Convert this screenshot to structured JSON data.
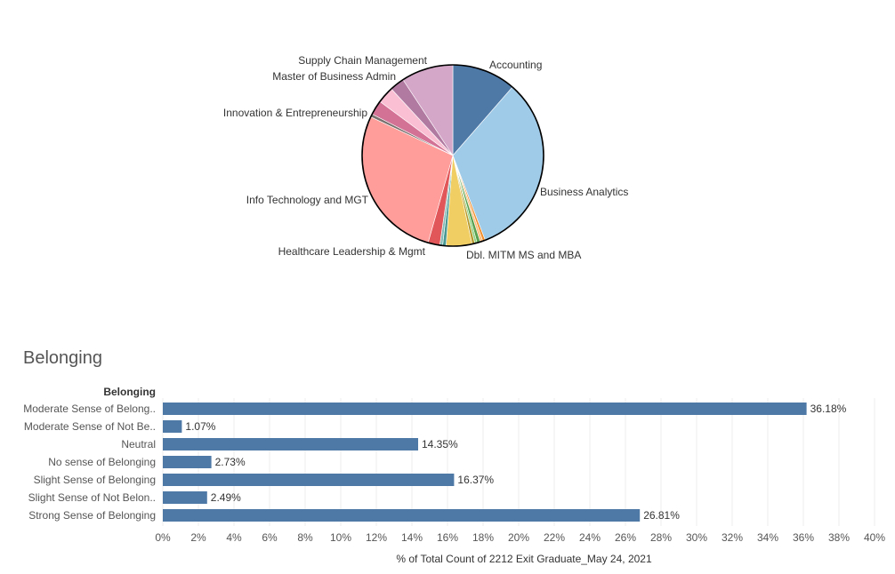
{
  "chart_data": [
    {
      "type": "pie",
      "slices": [
        {
          "label": "Accounting",
          "value": 11.4,
          "color": "#4e79a7"
        },
        {
          "label": "Business Analytics",
          "value": 32.8,
          "color": "#a0cbe8"
        },
        {
          "label": "",
          "value": 0.45,
          "color": "#f28e2b"
        },
        {
          "label": "Dbl. MITM MS and MBA",
          "value": 0.45,
          "color": "#ffbe7d"
        },
        {
          "label": "",
          "value": 0.6,
          "color": "#59a14f"
        },
        {
          "label": "",
          "value": 0.4,
          "color": "#8cd17d"
        },
        {
          "label": "",
          "value": 0.5,
          "color": "#b6992d"
        },
        {
          "label": "Healthcare Leadership & Mgmt",
          "value": 4.6,
          "color": "#f1ce63"
        },
        {
          "label": "",
          "value": 0.6,
          "color": "#499894"
        },
        {
          "label": "",
          "value": 0.5,
          "color": "#86bcb6"
        },
        {
          "label": "",
          "value": 2.1,
          "color": "#e15759"
        },
        {
          "label": "Info Technology and MGT",
          "value": 27.6,
          "color": "#ff9d9a"
        },
        {
          "label": "",
          "value": 0.55,
          "color": "#79706e"
        },
        {
          "label": "Innovation & Entrepreneurship",
          "value": 2.6,
          "color": "#d37295"
        },
        {
          "label": "",
          "value": 3.0,
          "color": "#fabfd2"
        },
        {
          "label": "Master of Business Admin",
          "value": 2.6,
          "color": "#b07aa1"
        },
        {
          "label": "Supply Chain Management",
          "value": 9.25,
          "color": "#d4a6c8"
        }
      ]
    },
    {
      "type": "bar",
      "orientation": "horizontal",
      "title": "Belonging",
      "row_header": "Belonging",
      "categories": [
        "Moderate Sense of Belong..",
        "Moderate Sense of Not Be..",
        "Neutral",
        "No sense of Belonging",
        "Slight Sense of Belonging",
        "Slight Sense of Not Belon..",
        "Strong Sense of Belonging"
      ],
      "values": [
        36.18,
        1.07,
        14.35,
        2.73,
        16.37,
        2.49,
        26.81
      ],
      "value_labels": [
        "36.18%",
        "1.07%",
        "14.35%",
        "2.73%",
        "16.37%",
        "2.49%",
        "26.81%"
      ],
      "xlim": [
        0,
        40
      ],
      "xticks": [
        0,
        2,
        4,
        6,
        8,
        10,
        12,
        14,
        16,
        18,
        20,
        22,
        24,
        26,
        28,
        30,
        32,
        34,
        36,
        38,
        40
      ],
      "xtick_labels": [
        "0%",
        "2%",
        "4%",
        "6%",
        "8%",
        "10%",
        "12%",
        "14%",
        "16%",
        "18%",
        "20%",
        "22%",
        "24%",
        "26%",
        "28%",
        "30%",
        "32%",
        "34%",
        "36%",
        "38%",
        "40%"
      ],
      "xlabel": "% of Total Count of 2212 Exit Graduate_May 24, 2021",
      "bar_color": "#4e79a7",
      "grid": true
    }
  ]
}
